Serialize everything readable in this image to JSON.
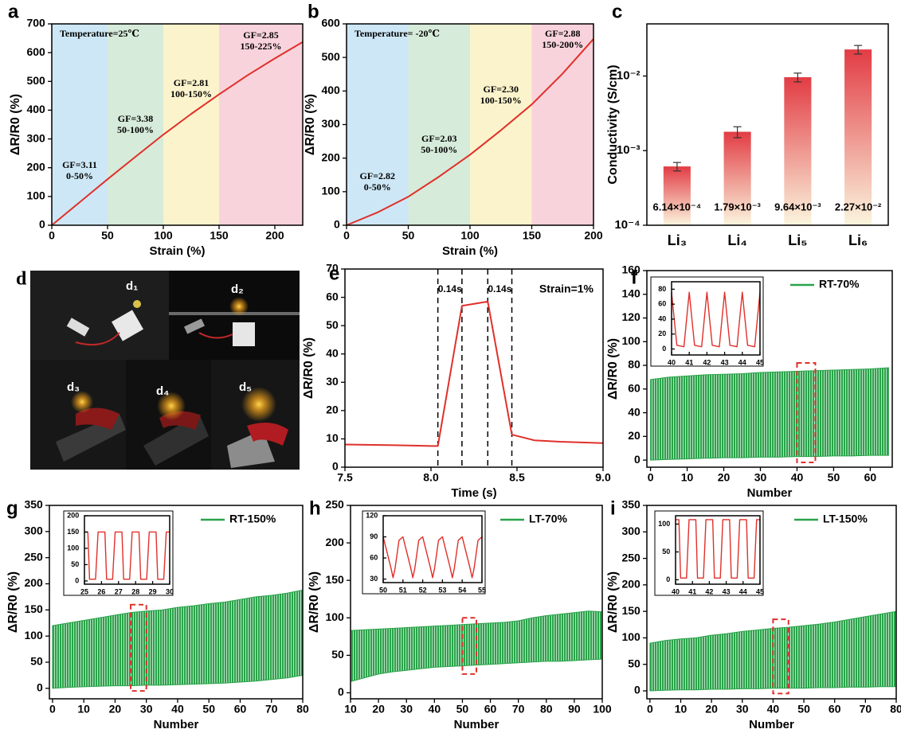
{
  "chart_data": [
    {
      "panel": "a",
      "type": "line",
      "x_label": "Strain (%)",
      "y_label": "ΔR/R0 (%)",
      "annotation": "Temperature=25℃",
      "x": [
        0,
        25,
        50,
        75,
        100,
        125,
        150,
        175,
        200,
        225
      ],
      "values": [
        0,
        80,
        160,
        238,
        315,
        387,
        455,
        520,
        580,
        637
      ],
      "color": "#e0302a",
      "xlim": [
        0,
        225
      ],
      "xticks": [
        0,
        50,
        100,
        150,
        200
      ],
      "ylim": [
        0,
        700
      ],
      "yticks": [
        0,
        100,
        200,
        300,
        400,
        500,
        600,
        700
      ],
      "regions": [
        {
          "from": 0,
          "to": 50,
          "color": "#cde7f6",
          "gf": "GF=3.11",
          "range": "0-50%"
        },
        {
          "from": 50,
          "to": 100,
          "color": "#d6ebd9",
          "gf": "GF=3.38",
          "range": "50-100%"
        },
        {
          "from": 100,
          "to": 150,
          "color": "#fbf3cc",
          "gf": "GF=2.81",
          "range": "100-150%"
        },
        {
          "from": 150,
          "to": 225,
          "color": "#f9d3dc",
          "gf": "GF=2.85",
          "range": "150-225%"
        }
      ]
    },
    {
      "panel": "b",
      "type": "line",
      "x_label": "Strain (%)",
      "y_label": "ΔR/R0 (%)",
      "annotation": "Temperature= -20℃",
      "x": [
        0,
        25,
        50,
        75,
        100,
        125,
        150,
        175,
        200
      ],
      "values": [
        0,
        38,
        85,
        145,
        210,
        283,
        360,
        452,
        555
      ],
      "color": "#e0302a",
      "xlim": [
        0,
        200
      ],
      "xticks": [
        0,
        50,
        100,
        150,
        200
      ],
      "ylim": [
        0,
        600
      ],
      "yticks": [
        0,
        100,
        200,
        300,
        400,
        500,
        600
      ],
      "regions": [
        {
          "from": 0,
          "to": 50,
          "color": "#cde7f6",
          "gf": "GF=2.82",
          "range": "0-50%"
        },
        {
          "from": 50,
          "to": 100,
          "color": "#d6ebd9",
          "gf": "GF=2.03",
          "range": "50-100%"
        },
        {
          "from": 100,
          "to": 150,
          "color": "#fbf3cc",
          "gf": "GF=2.30",
          "range": "100-150%"
        },
        {
          "from": 150,
          "to": 200,
          "color": "#f9d3dc",
          "gf": "GF=2.88",
          "range": "150-200%"
        }
      ]
    },
    {
      "panel": "c",
      "type": "bar",
      "log": true,
      "y_label": "Conductivity (S/cm)",
      "categories": [
        "Li₃",
        "Li₄",
        "Li₅",
        "Li₆"
      ],
      "values": [
        0.000614,
        0.00179,
        0.00964,
        0.0227
      ],
      "value_labels": [
        "6.14×10⁻⁴",
        "1.79×10⁻³",
        "9.64×10⁻³",
        "2.27×10⁻²"
      ],
      "errors": [
        8e-05,
        0.0003,
        0.0013,
        0.003
      ],
      "color": "#e23c44",
      "ylim": [
        0.0001,
        0.05
      ],
      "yticks": [
        {
          "value": 0.0001,
          "label": "10⁻⁴"
        },
        {
          "value": 0.001,
          "label": "10⁻³"
        },
        {
          "value": 0.01,
          "label": "10⁻²"
        }
      ]
    },
    {
      "panel": "e",
      "type": "line",
      "x_label": "Time (s)",
      "y_label": "ΔR/R0 (%)",
      "note": "Strain=1%",
      "x": [
        7.5,
        7.75,
        8.0,
        8.04,
        8.18,
        8.33,
        8.47,
        8.6,
        8.75,
        9.0
      ],
      "values": [
        8,
        7.8,
        7.5,
        7.5,
        57,
        58.5,
        11.5,
        9.5,
        9,
        8.5
      ],
      "color": "#e0302a",
      "vlines": [
        8.04,
        8.18,
        8.33,
        8.47
      ],
      "interval_labels": [
        "0.14s",
        "0.14s"
      ],
      "xlim": [
        7.5,
        9.0
      ],
      "xticks": [
        7.5,
        {
          "value": 8,
          "label": "8.0"
        },
        8.5,
        {
          "value": 9,
          "label": "9.0"
        }
      ],
      "ylim": [
        0,
        70
      ],
      "yticks": [
        0,
        10,
        20,
        30,
        40,
        50,
        60,
        70
      ]
    },
    {
      "panel": "f",
      "type": "band",
      "x_label": "Number",
      "y_label": "ΔR/R0 (%)",
      "x": [
        0,
        5,
        10,
        15,
        20,
        25,
        30,
        35,
        40,
        45,
        50,
        55,
        60,
        65
      ],
      "series": [
        {
          "name": "RT-70%",
          "color": "#2aa34a",
          "upper": [
            68,
            70,
            71,
            72,
            72.5,
            73,
            74,
            74.5,
            75,
            75.5,
            76,
            76.5,
            77,
            78
          ],
          "lower": [
            0,
            0.5,
            1,
            1.5,
            2,
            2,
            2.5,
            2.5,
            3,
            3,
            3.5,
            3.5,
            4,
            4
          ]
        }
      ],
      "xlim": [
        -1,
        66
      ],
      "xticks": [
        0,
        10,
        20,
        30,
        40,
        50,
        60
      ],
      "ylim": [
        -6,
        160
      ],
      "yticks": [
        0,
        20,
        40,
        60,
        80,
        100,
        120,
        140,
        160
      ],
      "highlight": {
        "x": [
          40,
          45
        ],
        "y": [
          -2,
          82
        ]
      },
      "inset": {
        "color": "#e0302a",
        "xlim": [
          40,
          45
        ],
        "xticks": [
          40,
          41,
          42,
          43,
          44,
          45
        ],
        "ylim": [
          -8,
          90
        ],
        "yticks": [
          0,
          20,
          40,
          60,
          80
        ],
        "x": [
          40,
          40.15,
          40.3,
          40.7,
          40.85,
          41,
          41.15,
          41.3,
          41.7,
          41.85,
          42,
          42.15,
          42.3,
          42.7,
          42.85,
          43,
          43.15,
          43.3,
          43.7,
          43.85,
          44,
          44.15,
          44.3,
          44.7,
          44.85,
          45
        ],
        "values": [
          76,
          40,
          5,
          3,
          40,
          76,
          40,
          5,
          3,
          40,
          76,
          40,
          5,
          3,
          40,
          76,
          40,
          5,
          3,
          40,
          76,
          40,
          5,
          3,
          40,
          76
        ]
      }
    },
    {
      "panel": "g",
      "type": "band",
      "x_label": "Number",
      "y_label": "ΔR/R0 (%)",
      "x": [
        0,
        5,
        10,
        15,
        20,
        25,
        30,
        35,
        40,
        45,
        50,
        55,
        60,
        65,
        70,
        75,
        80
      ],
      "series": [
        {
          "name": "RT-150%",
          "color": "#2aa34a",
          "upper": [
            120,
            125,
            130,
            135,
            140,
            145,
            148,
            150,
            155,
            158,
            162,
            165,
            170,
            175,
            178,
            182,
            188
          ],
          "lower": [
            0,
            2,
            3,
            4,
            5,
            5,
            6,
            6,
            7,
            8,
            9,
            10,
            12,
            14,
            17,
            20,
            25
          ]
        }
      ],
      "xlim": [
        -1,
        80
      ],
      "xticks": [
        0,
        10,
        20,
        30,
        40,
        50,
        60,
        70,
        80
      ],
      "ylim": [
        -20,
        350
      ],
      "yticks": [
        0,
        50,
        100,
        150,
        200,
        250,
        300,
        350
      ],
      "highlight": {
        "x": [
          25,
          30
        ],
        "y": [
          -5,
          160
        ]
      },
      "inset": {
        "color": "#e0302a",
        "xlim": [
          25,
          30
        ],
        "xticks": [
          25,
          26,
          27,
          28,
          29,
          30
        ],
        "ylim": [
          -10,
          200
        ],
        "yticks": [
          0,
          50,
          100,
          150,
          200
        ],
        "x": [
          25,
          25.2,
          25.3,
          25.65,
          25.8,
          26.2,
          26.3,
          26.65,
          26.8,
          27.2,
          27.3,
          27.65,
          27.8,
          28.2,
          28.3,
          28.65,
          28.8,
          29.2,
          29.3,
          29.65,
          29.8,
          30
        ],
        "values": [
          150,
          150,
          5,
          5,
          150,
          150,
          5,
          5,
          150,
          150,
          5,
          5,
          150,
          150,
          5,
          5,
          150,
          150,
          5,
          5,
          150,
          150
        ]
      }
    },
    {
      "panel": "h",
      "type": "band",
      "x_label": "Number",
      "y_label": "ΔR/R0 (%)",
      "x": [
        10,
        15,
        20,
        25,
        30,
        35,
        40,
        45,
        50,
        55,
        60,
        65,
        70,
        75,
        80,
        85,
        90,
        95,
        100
      ],
      "series": [
        {
          "name": "LT-70%",
          "color": "#2aa34a",
          "upper": [
            83,
            84,
            85,
            86,
            87,
            88,
            89,
            90,
            91,
            92,
            93,
            94,
            96,
            100,
            103,
            105,
            107,
            109,
            108
          ],
          "lower": [
            15,
            20,
            25,
            28,
            30,
            32,
            34,
            35,
            36,
            37,
            38,
            39,
            40,
            41,
            42,
            42,
            43,
            44,
            45
          ]
        }
      ],
      "xlim": [
        10,
        100
      ],
      "xticks": [
        10,
        20,
        30,
        40,
        50,
        60,
        70,
        80,
        90,
        100
      ],
      "ylim": [
        -8,
        250
      ],
      "yticks": [
        0,
        50,
        100,
        150,
        200,
        250
      ],
      "highlight": {
        "x": [
          50,
          55
        ],
        "y": [
          25,
          100
        ]
      },
      "inset": {
        "color": "#e0302a",
        "xlim": [
          50,
          55
        ],
        "xticks": [
          50,
          51,
          52,
          53,
          54,
          55
        ],
        "ylim": [
          25,
          120
        ],
        "yticks": [
          30,
          60,
          90,
          120
        ],
        "x": [
          50,
          50.25,
          50.4,
          50.5,
          50.6,
          50.8,
          51,
          51.25,
          51.4,
          51.5,
          51.6,
          51.8,
          52,
          52.25,
          52.4,
          52.5,
          52.6,
          52.8,
          53,
          53.25,
          53.4,
          53.5,
          53.6,
          53.8,
          54,
          54.25,
          54.4,
          54.5,
          54.6,
          54.8,
          55
        ],
        "values": [
          90,
          62,
          45,
          32,
          45,
          85,
          90,
          62,
          45,
          32,
          45,
          85,
          90,
          62,
          45,
          32,
          45,
          85,
          90,
          62,
          45,
          32,
          45,
          85,
          90,
          62,
          45,
          32,
          45,
          85,
          90
        ]
      }
    },
    {
      "panel": "i",
      "type": "band",
      "x_label": "Number",
      "y_label": "ΔR/R0 (%)",
      "x": [
        0,
        5,
        10,
        15,
        20,
        25,
        30,
        35,
        40,
        45,
        50,
        55,
        60,
        65,
        70,
        75,
        80
      ],
      "series": [
        {
          "name": "LT-150%",
          "color": "#2aa34a",
          "upper": [
            90,
            95,
            98,
            100,
            105,
            108,
            112,
            115,
            118,
            120,
            123,
            126,
            130,
            135,
            140,
            145,
            150
          ],
          "lower": [
            0,
            1,
            2,
            2,
            3,
            3,
            4,
            4,
            5,
            5,
            5,
            6,
            6,
            7,
            7,
            8,
            8
          ]
        }
      ],
      "xlim": [
        -1,
        80
      ],
      "xticks": [
        0,
        10,
        20,
        30,
        40,
        50,
        60,
        70,
        80
      ],
      "ylim": [
        -15,
        350
      ],
      "yticks": [
        0,
        50,
        100,
        150,
        200,
        250,
        300,
        350
      ],
      "highlight": {
        "x": [
          40,
          45
        ],
        "y": [
          -5,
          135
        ]
      },
      "inset": {
        "color": "#e0302a",
        "xlim": [
          40,
          45
        ],
        "xticks": [
          40,
          41,
          42,
          43,
          44,
          45
        ],
        "ylim": [
          -8,
          115
        ],
        "yticks": [
          0,
          50,
          100
        ],
        "x": [
          40,
          40.2,
          40.3,
          40.65,
          40.8,
          41.2,
          41.3,
          41.65,
          41.8,
          42.2,
          42.3,
          42.65,
          42.8,
          43.2,
          43.3,
          43.65,
          43.8,
          44.2,
          44.3,
          44.65,
          44.8,
          45
        ],
        "values": [
          108,
          108,
          3,
          3,
          108,
          108,
          3,
          3,
          108,
          108,
          3,
          3,
          108,
          108,
          3,
          3,
          108,
          108,
          3,
          3,
          108,
          108
        ]
      }
    }
  ],
  "photo_panel": {
    "letter": "d",
    "labels": [
      "d₁",
      "d₂",
      "d₃",
      "d₄",
      "d₅"
    ]
  }
}
